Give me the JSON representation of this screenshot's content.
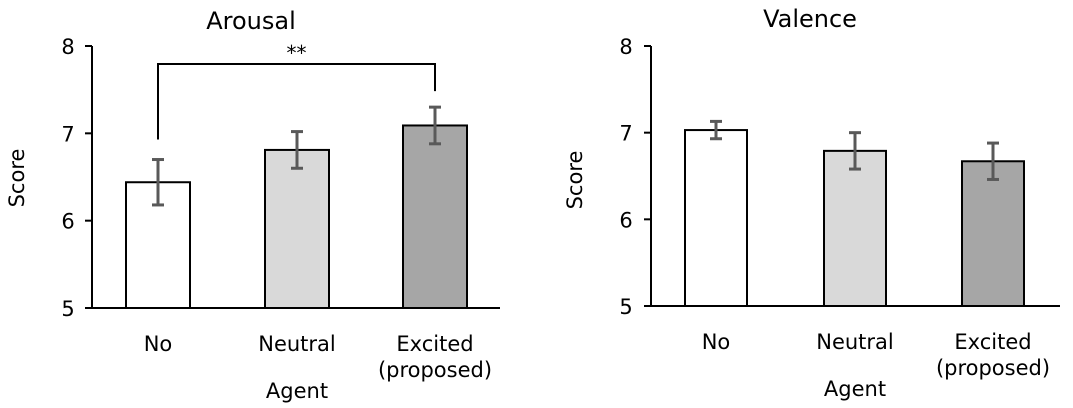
{
  "chart_data": [
    {
      "type": "bar",
      "title": "Arousal",
      "xlabel": "Agent",
      "ylabel": "Score",
      "ylim": [
        5,
        8
      ],
      "yticks": [
        "5",
        "6",
        "7",
        "8"
      ],
      "categories": [
        "No",
        "Neutral",
        "Excited (proposed)"
      ],
      "category_lines": [
        [
          "No"
        ],
        [
          "Neutral"
        ],
        [
          "Excited",
          "(proposed)"
        ]
      ],
      "values": [
        6.44,
        6.81,
        7.09
      ],
      "errors": [
        0.26,
        0.21,
        0.21
      ],
      "colors": [
        "#ffffff",
        "#d9d9d9",
        "#a6a6a6"
      ],
      "significance": {
        "from": 0,
        "to": 2,
        "label": "**"
      },
      "grid": false
    },
    {
      "type": "bar",
      "title": "Valence",
      "xlabel": "Agent",
      "ylabel": "Score",
      "ylim": [
        5,
        8
      ],
      "yticks": [
        "5",
        "6",
        "7",
        "8"
      ],
      "categories": [
        "No",
        "Neutral",
        "Excited (proposed)"
      ],
      "category_lines": [
        [
          "No"
        ],
        [
          "Neutral"
        ],
        [
          "Excited",
          "(proposed)"
        ]
      ],
      "values": [
        7.03,
        6.79,
        6.67
      ],
      "errors": [
        0.1,
        0.21,
        0.21
      ],
      "colors": [
        "#ffffff",
        "#d9d9d9",
        "#a6a6a6"
      ],
      "grid": false
    }
  ]
}
